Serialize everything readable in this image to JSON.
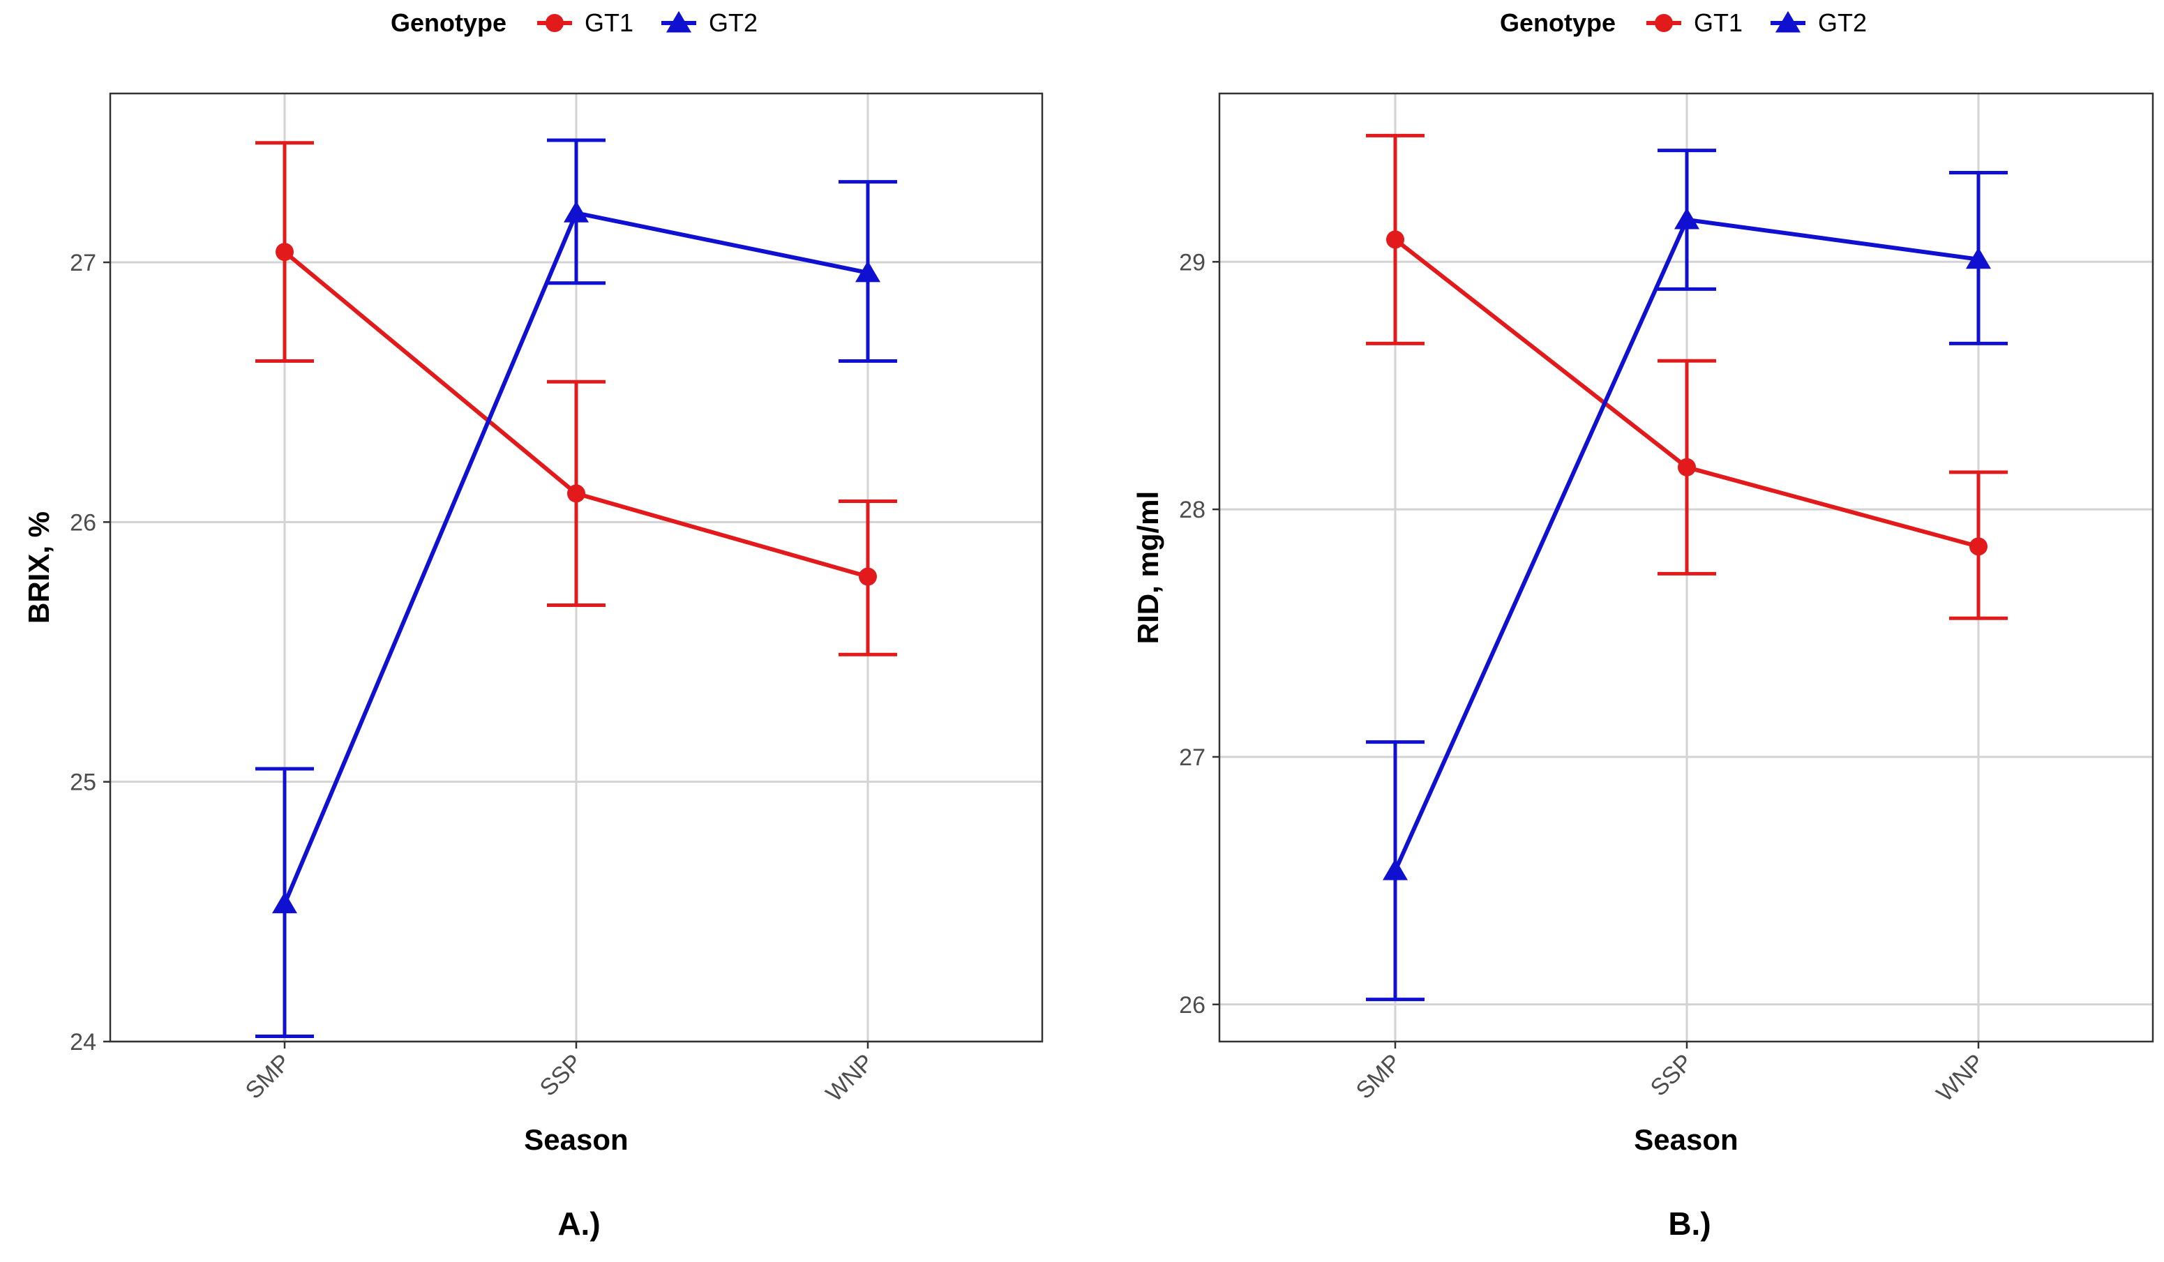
{
  "legend": {
    "title": "Genotype",
    "entries": [
      {
        "name": "GT1",
        "color": "#e31a1c",
        "marker": "circle"
      },
      {
        "name": "GT2",
        "color": "#1010d0",
        "marker": "triangle"
      }
    ]
  },
  "chart_data": [
    {
      "type": "line",
      "panel_label": "A.)",
      "xlabel": "Season",
      "ylabel": "BRIX, %",
      "categories": [
        "SMP",
        "SSP",
        "WNP"
      ],
      "ylim": [
        24,
        27.65
      ],
      "yticks": [
        24,
        25,
        26,
        27
      ],
      "grid": true,
      "legend_position": "top",
      "series": [
        {
          "name": "GT1",
          "color": "#e31a1c",
          "marker": "circle",
          "values": [
            27.04,
            26.11,
            25.79
          ],
          "lower": [
            26.62,
            25.68,
            25.49
          ],
          "upper": [
            27.46,
            26.54,
            26.08
          ]
        },
        {
          "name": "GT2",
          "color": "#1010d0",
          "marker": "triangle",
          "values": [
            24.53,
            27.19,
            26.96
          ],
          "lower": [
            24.02,
            26.92,
            26.62
          ],
          "upper": [
            25.05,
            27.47,
            27.31
          ]
        }
      ]
    },
    {
      "type": "line",
      "panel_label": "B.)",
      "xlabel": "Season",
      "ylabel": "RID, mg/ml",
      "categories": [
        "SMP",
        "SSP",
        "WNP"
      ],
      "ylim": [
        25.85,
        29.68
      ],
      "yticks": [
        26,
        27,
        28,
        29
      ],
      "grid": true,
      "legend_position": "top",
      "series": [
        {
          "name": "GT1",
          "color": "#e31a1c",
          "marker": "circle",
          "values": [
            29.09,
            28.17,
            27.85
          ],
          "lower": [
            28.67,
            27.74,
            27.56
          ],
          "upper": [
            29.51,
            28.6,
            28.15
          ]
        },
        {
          "name": "GT2",
          "color": "#1010d0",
          "marker": "triangle",
          "values": [
            26.54,
            29.17,
            29.01
          ],
          "lower": [
            26.02,
            28.89,
            28.67
          ],
          "upper": [
            27.06,
            29.45,
            29.36
          ]
        }
      ]
    }
  ]
}
